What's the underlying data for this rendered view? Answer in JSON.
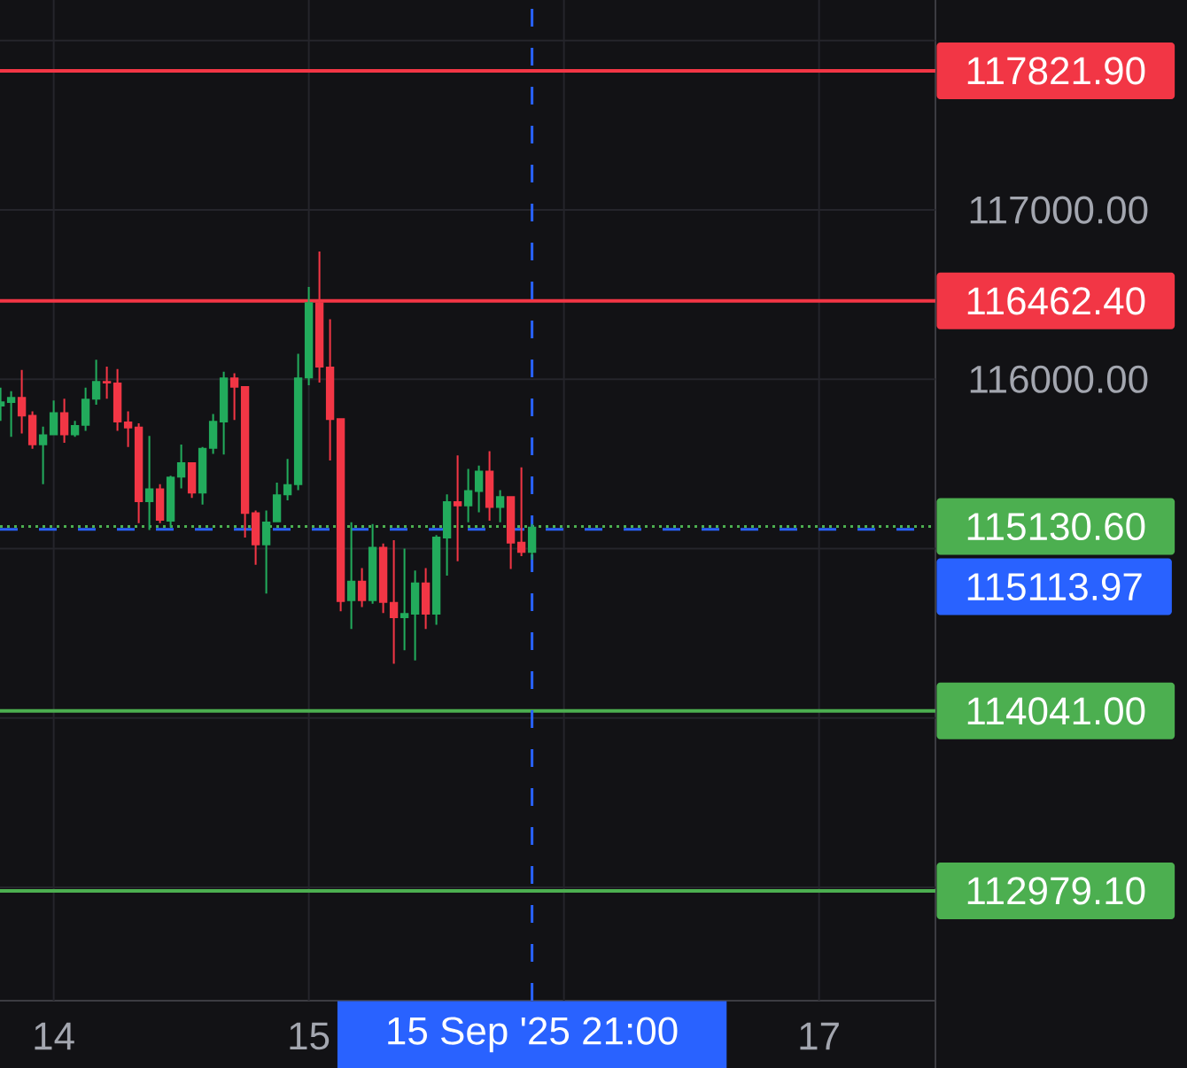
{
  "chart_data": {
    "type": "candlestick",
    "x": [
      "2025-09-13T19:00",
      "2025-09-13T20:00",
      "2025-09-13T21:00",
      "2025-09-13T22:00",
      "2025-09-13T23:00",
      "2025-09-14T00:00",
      "2025-09-14T01:00",
      "2025-09-14T02:00",
      "2025-09-14T03:00",
      "2025-09-14T04:00",
      "2025-09-14T05:00",
      "2025-09-14T06:00",
      "2025-09-14T07:00",
      "2025-09-14T08:00",
      "2025-09-14T09:00",
      "2025-09-14T10:00",
      "2025-09-14T11:00",
      "2025-09-14T12:00",
      "2025-09-14T13:00",
      "2025-09-14T14:00",
      "2025-09-14T15:00",
      "2025-09-14T16:00",
      "2025-09-14T17:00",
      "2025-09-14T18:00",
      "2025-09-14T19:00",
      "2025-09-14T20:00",
      "2025-09-14T21:00",
      "2025-09-14T22:00",
      "2025-09-14T23:00",
      "2025-09-15T00:00",
      "2025-09-15T01:00",
      "2025-09-15T02:00",
      "2025-09-15T03:00",
      "2025-09-15T04:00",
      "2025-09-15T05:00",
      "2025-09-15T06:00",
      "2025-09-15T07:00",
      "2025-09-15T08:00",
      "2025-09-15T09:00",
      "2025-09-15T10:00",
      "2025-09-15T11:00",
      "2025-09-15T12:00",
      "2025-09-15T13:00",
      "2025-09-15T14:00",
      "2025-09-15T15:00",
      "2025-09-15T16:00",
      "2025-09-15T17:00",
      "2025-09-15T18:00",
      "2025-09-15T19:00",
      "2025-09-15T20:00",
      "2025-09-15T21:00"
    ],
    "ohlc": [
      [
        115840,
        115950,
        115755,
        115870
      ],
      [
        115860,
        115930,
        115660,
        115895
      ],
      [
        115895,
        116055,
        115680,
        115780
      ],
      [
        115790,
        115810,
        115590,
        115610
      ],
      [
        115610,
        115720,
        115380,
        115675
      ],
      [
        115670,
        115875,
        115670,
        115805
      ],
      [
        115805,
        115885,
        115625,
        115670
      ],
      [
        115670,
        115755,
        115660,
        115730
      ],
      [
        115725,
        115950,
        115695,
        115885
      ],
      [
        115880,
        116115,
        115850,
        115990
      ],
      [
        115990,
        116075,
        115885,
        115975
      ],
      [
        115980,
        116060,
        115695,
        115745
      ],
      [
        115750,
        115810,
        115600,
        115710
      ],
      [
        115720,
        115740,
        115150,
        115275
      ],
      [
        115275,
        115665,
        115110,
        115355
      ],
      [
        115355,
        115380,
        115150,
        115165
      ],
      [
        115160,
        115430,
        115125,
        115425
      ],
      [
        115420,
        115615,
        115355,
        115510
      ],
      [
        115510,
        115510,
        115300,
        115325
      ],
      [
        115325,
        115600,
        115260,
        115595
      ],
      [
        115590,
        115795,
        115560,
        115755
      ],
      [
        115745,
        116045,
        115555,
        116010
      ],
      [
        116010,
        116035,
        115760,
        115950
      ],
      [
        115960,
        115960,
        115065,
        115205
      ],
      [
        115215,
        115225,
        114905,
        115020
      ],
      [
        115020,
        115225,
        114735,
        115160
      ],
      [
        115155,
        115390,
        115155,
        115320
      ],
      [
        115315,
        115530,
        115285,
        115380
      ],
      [
        115375,
        116150,
        115345,
        116010
      ],
      [
        116005,
        116545,
        115965,
        116455
      ],
      [
        116455,
        116755,
        115980,
        116070
      ],
      [
        116075,
        116355,
        115520,
        115760
      ],
      [
        115770,
        115770,
        114630,
        114685
      ],
      [
        114690,
        115155,
        114525,
        114810
      ],
      [
        114810,
        114885,
        114655,
        114690
      ],
      [
        114690,
        115145,
        114675,
        115010
      ],
      [
        115010,
        115030,
        114620,
        114680
      ],
      [
        114685,
        115050,
        114320,
        114590
      ],
      [
        114590,
        115000,
        114400,
        114620
      ],
      [
        114610,
        114870,
        114340,
        114800
      ],
      [
        114800,
        114885,
        114525,
        114610
      ],
      [
        114610,
        115080,
        114550,
        115070
      ],
      [
        115060,
        115320,
        114840,
        115280
      ],
      [
        115280,
        115550,
        114925,
        115250
      ],
      [
        115250,
        115470,
        115155,
        115345
      ],
      [
        115335,
        115490,
        115215,
        115460
      ],
      [
        115460,
        115575,
        115165,
        115240
      ],
      [
        115240,
        115345,
        115155,
        115310
      ],
      [
        115310,
        115310,
        114880,
        115030
      ],
      [
        115040,
        115480,
        114955,
        114975
      ],
      [
        114975,
        115145,
        114935,
        115130
      ]
    ],
    "colors": [
      "#22ab5c",
      "#22ab5c",
      "#f23645",
      "#f23645",
      "#22ab5c",
      "#22ab5c",
      "#f23645",
      "#22ab5c",
      "#22ab5c",
      "#22ab5c",
      "#f23645",
      "#f23645",
      "#f23645",
      "#f23645",
      "#22ab5c",
      "#f23645",
      "#22ab5c",
      "#22ab5c",
      "#f23645",
      "#22ab5c",
      "#22ab5c",
      "#22ab5c",
      "#f23645",
      "#f23645",
      "#f23645",
      "#22ab5c",
      "#22ab5c",
      "#22ab5c",
      "#22ab5c",
      "#22ab5c",
      "#f23645",
      "#f23645",
      "#f23645",
      "#22ab5c",
      "#f23645",
      "#22ab5c",
      "#f23645",
      "#f23645",
      "#22ab5c",
      "#22ab5c",
      "#f23645",
      "#22ab5c",
      "#22ab5c",
      "#f23645",
      "#22ab5c",
      "#22ab5c",
      "#f23645",
      "#22ab5c",
      "#f23645",
      "#f23645",
      "#22ab5c"
    ],
    "xlim": [
      "2025-09-13T18:57",
      "2025-09-17T10:57"
    ],
    "xticks": [
      {
        "value": "2025-09-14",
        "label": "14"
      },
      {
        "value": "2025-09-15",
        "label": "15"
      },
      {
        "value": "2025-09-16",
        "label": null
      },
      {
        "value": "2025-09-17",
        "label": "17"
      }
    ],
    "ylim": [
      112330,
      118240
    ],
    "yticks": [
      {
        "value": 113000,
        "label": null
      },
      {
        "value": 114000,
        "label": null
      },
      {
        "value": 115000,
        "label": null
      },
      {
        "value": 116000,
        "label": "116000.00"
      },
      {
        "value": 117000,
        "label": "117000.00"
      },
      {
        "value": 118000,
        "label": null
      }
    ],
    "grid": true,
    "ref_lines": [
      {
        "axis": "y",
        "value": 117821.9,
        "label": "117821.90",
        "color": "#f23645"
      },
      {
        "axis": "y",
        "value": 116462.4,
        "label": "116462.40",
        "color": "#f23645"
      },
      {
        "axis": "y",
        "value": 115130.6,
        "label": "115130.60",
        "color": "#4caf50",
        "line_style": "dotted"
      },
      {
        "axis": "y",
        "value": 115113.97,
        "label": "115113.97",
        "color": "#2962ff",
        "line_style": "dashed"
      },
      {
        "axis": "y",
        "value": 114041,
        "label": "114041.00",
        "color": "#4caf50"
      },
      {
        "axis": "y",
        "value": 112979.1,
        "label": "112979.10",
        "color": "#4caf50"
      },
      {
        "axis": "x",
        "value": "2025-09-15T21:00",
        "label": "15 Sep '25 21:00",
        "color": "#2962ff",
        "line_style": "dashed"
      }
    ]
  }
}
